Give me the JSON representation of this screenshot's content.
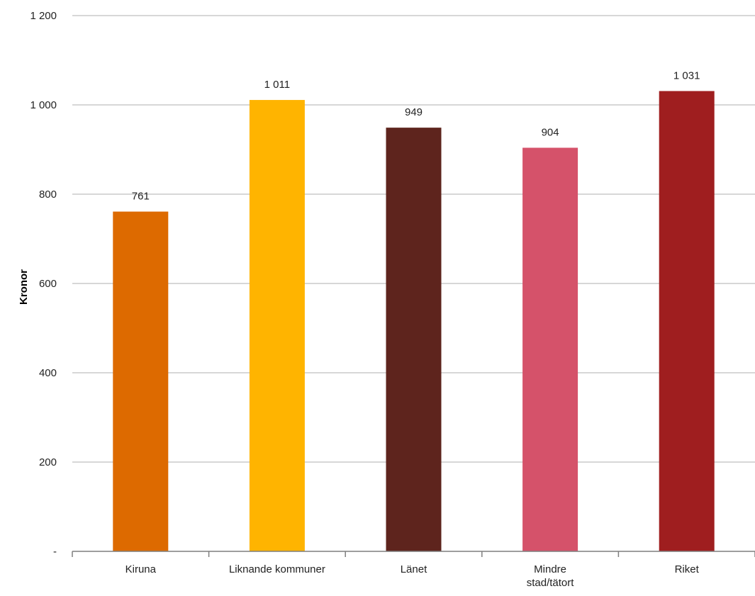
{
  "chart_data": {
    "type": "bar",
    "title": "",
    "xlabel": "",
    "ylabel": "Kronor",
    "ylim": [
      0,
      1200
    ],
    "yticks": [
      {
        "value": 0,
        "label": "-"
      },
      {
        "value": 200,
        "label": "200"
      },
      {
        "value": 400,
        "label": "400"
      },
      {
        "value": 600,
        "label": "600"
      },
      {
        "value": 800,
        "label": "800"
      },
      {
        "value": 1000,
        "label": "1 000"
      },
      {
        "value": 1200,
        "label": "1 200"
      }
    ],
    "grid": true,
    "legend": "none",
    "categories": [
      [
        "Kiruna"
      ],
      [
        "Liknande kommuner"
      ],
      [
        "Länet"
      ],
      [
        "Mindre",
        "stad/tätort"
      ],
      [
        "Riket"
      ]
    ],
    "values": [
      761,
      1011,
      949,
      904,
      1031
    ],
    "value_labels": [
      "761",
      "1 011",
      "949",
      "904",
      "1 031"
    ],
    "colors": [
      "#DD6A00",
      "#FFB400",
      "#5E241D",
      "#D5526A",
      "#9F1E1F"
    ],
    "gridline_color": "#BFBFBF",
    "axis_color": "#7F7F7F"
  }
}
